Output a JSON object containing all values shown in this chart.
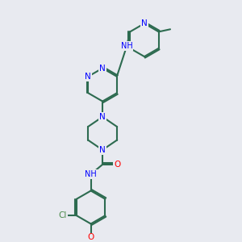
{
  "background_color": "#e8eaf0",
  "bond_color": "#2d6b50",
  "N_color": "#0000ff",
  "O_color": "#ff0000",
  "Cl_color": "#4a8a4a",
  "line_width": 1.5,
  "doffset": 0.07,
  "figsize": [
    3.0,
    3.0
  ],
  "dpi": 100,
  "xlim": [
    -2.5,
    4.5
  ],
  "ylim": [
    -5.5,
    6.5
  ]
}
